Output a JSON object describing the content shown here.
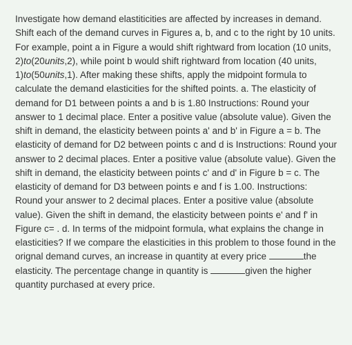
{
  "text": {
    "p1": "Investigate how demand elastiticities are affected by increases in demand. Shift each of the demand curves in Figures a, b, and c to the right by 10 units. For example, point a in Figure a would shift rightward from location (10 units, ",
    "m1a": "2",
    "m1b": ")",
    "m1c": "to",
    "m1d": "(",
    "m1e": "20",
    "m1f": "units",
    "m1g": ",2), while point b would shift rightward from location (40 units, ",
    "m2a": "1",
    "m2b": ")",
    "m2c": "to",
    "m2d": "(",
    "m2e": "50",
    "m2f": "units",
    "m2g": ",1). After making these shifts, apply the midpoint formula to calculate the demand elasticities for the shifted points. a. The elasticity of demand for D1 between points a and b is 1.80 Instructions: Round your answer to 1 decimal place. Enter a positive value (absolute value). Given the shift in demand, the elasticity between points a' and b' in Figure a = b. The elasticity of demand for D2 between points c and d is Instructions: Round your answer to 2 decimal places. Enter a positive value (absolute value). Given the shift in demand, the elasticity between points c' and d' in Figure b = c. The elasticity of demand for D3 between points e and f is 1.00. Instructions: Round your answer to 2 decimal places. Enter a positive value (absolute value). Given the shift in demand, the elasticity between points e' and f' in Figure c= . d. In terms of the midpoint formula, what explains the change in elasticities? If we compare the elasticities in this problem to those found in the orignal demand curves, an increase in quantity at every price ",
    "p2": "the elasticity. The percentage change in quantity is ",
    "p3": "given the higher quantity purchased at every price."
  },
  "style": {
    "background_color": "#f0f5f0",
    "text_color": "#333333",
    "font_size": 13.5,
    "line_height": 1.5,
    "blank_width": 50
  }
}
